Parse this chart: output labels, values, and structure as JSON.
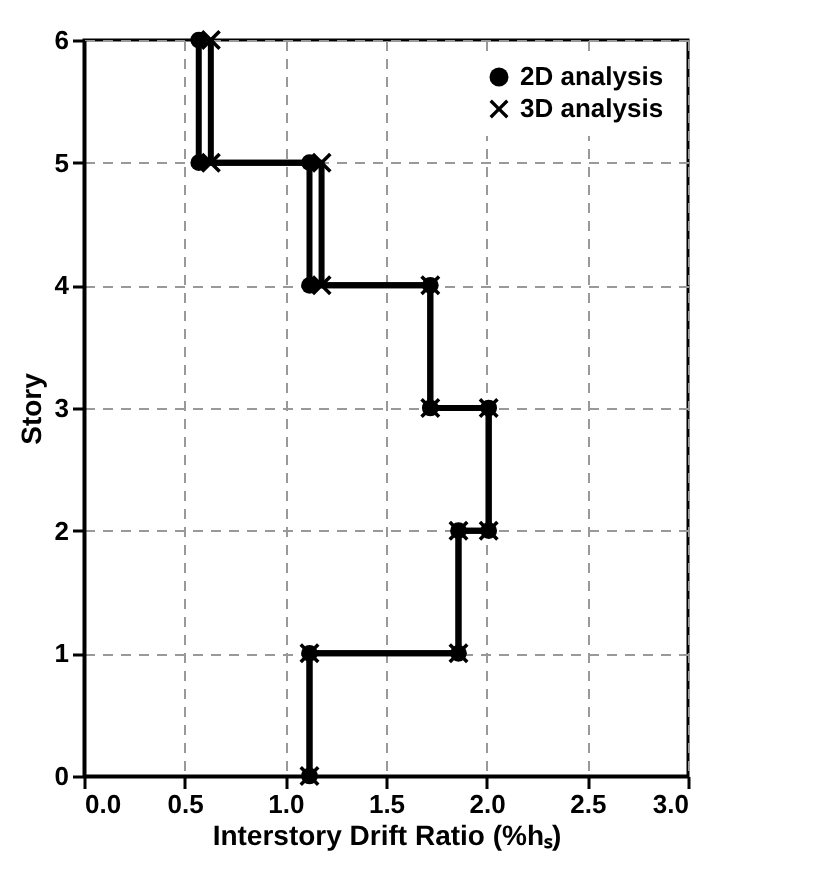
{
  "chart_data": {
    "type": "line",
    "xlabel": "Interstory Drift Ratio (%hₛ)",
    "ylabel": "Story",
    "xlim": [
      0,
      3
    ],
    "xticks": [
      {
        "value": 0,
        "label": "0.0"
      },
      {
        "value": 0.5,
        "label": "0.5"
      },
      {
        "value": 1,
        "label": "1.0"
      },
      {
        "value": 1.5,
        "label": "1.5"
      },
      {
        "value": 2,
        "label": "2.0"
      },
      {
        "value": 2.5,
        "label": "2.5"
      },
      {
        "value": 3,
        "label": "3.0"
      }
    ],
    "ylim": [
      0,
      6
    ],
    "yticks": [
      0,
      1,
      2,
      3,
      4,
      5,
      6
    ],
    "grid": true,
    "legend": "top right",
    "series": [
      {
        "name": "2D analysis",
        "color": "#000000",
        "marker": "circle",
        "x": [
          1.12,
          1.12,
          1.86,
          1.86,
          2.01,
          2.01,
          1.72,
          1.72,
          1.12,
          1.12,
          0.57,
          0.57
        ],
        "values": [
          0,
          1,
          1,
          2,
          2,
          3,
          3,
          4,
          4,
          5,
          5,
          6
        ]
      },
      {
        "name": "3D analysis",
        "color": "#000000",
        "marker": "cross",
        "x": [
          1.12,
          1.12,
          1.86,
          1.86,
          2.01,
          2.01,
          1.72,
          1.72,
          1.18,
          1.18,
          0.63,
          0.63
        ],
        "values": [
          0,
          1,
          1,
          2,
          2,
          3,
          3,
          4,
          4,
          5,
          5,
          6
        ]
      }
    ]
  }
}
